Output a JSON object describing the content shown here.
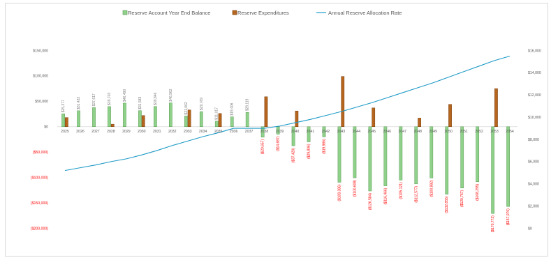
{
  "chart_data": {
    "type": "bar",
    "categories": [
      "2025",
      "2026",
      "2027",
      "2028",
      "2029",
      "2030",
      "2031",
      "2032",
      "2033",
      "2034",
      "2035",
      "2036",
      "2037",
      "2038",
      "2039",
      "2040",
      "2041",
      "2042",
      "2043",
      "2044",
      "2045",
      "2046",
      "2047",
      "2048",
      "2049",
      "2050",
      "2051",
      "2052",
      "2053",
      "2054"
    ],
    "series": [
      {
        "name": "Reserve Account Year End Balance",
        "type": "bar",
        "axis": "left",
        "color": "#8fd18a",
        "border": "#5a9a52",
        "values": [
          25377,
          31432,
          37617,
          39703,
          46490,
          31583,
          39846,
          46962,
          21062,
          29769,
          11017,
          19406,
          28119,
          -20657,
          -14687,
          -37420,
          -29806,
          -19986,
          -109386,
          -100608,
          -126584,
          -116466,
          -105121,
          -112577,
          -100992,
          -132855,
          -120767,
          -108295,
          -170773,
          -157070
        ],
        "labels": [
          "$25,377",
          "$31,432",
          "$37,617",
          "$39,703",
          "$46,490",
          "$31,583",
          "$39,846",
          "$46,962",
          "$21,062",
          "$29,769",
          "$11,017",
          "$19,406",
          "$28,119",
          "($20,657)",
          "($14,687)",
          "($37,420)",
          "($29,806)",
          "($19,986)",
          "($109,386)",
          "($100,608)",
          "($126,584)",
          "($116,466)",
          "($105,121)",
          "($112,577)",
          "($100,992)",
          "($132,855)",
          "($120,767)",
          "($108,295)",
          "($170,773)",
          "($157,070)"
        ]
      },
      {
        "name": "Reserve Expenditures",
        "type": "bar",
        "axis": "left",
        "color": "#b5651d",
        "border": "#7a3f0f",
        "values": [
          18000,
          0,
          0,
          5000,
          0,
          22000,
          0,
          0,
          33000,
          0,
          26000,
          0,
          0,
          59000,
          0,
          31000,
          0,
          0,
          99000,
          0,
          37000,
          0,
          0,
          17000,
          0,
          44000,
          0,
          0,
          75000,
          0
        ]
      },
      {
        "name": "Annual Reserve Allocation Rate",
        "type": "line",
        "axis": "right",
        "color": "#1f9bc7",
        "values": [
          5200,
          5450,
          5700,
          6000,
          6250,
          6600,
          7000,
          7450,
          7850,
          8250,
          8600,
          9000,
          9000,
          9000,
          9200,
          9500,
          9800,
          10150,
          10500,
          10900,
          11300,
          11750,
          12200,
          12650,
          13100,
          13600,
          14100,
          14600,
          15100,
          15500
        ]
      }
    ],
    "left_axis": {
      "min": -200000,
      "max": 150000,
      "step": 50000,
      "tick_labels": [
        "$150,000",
        "$100,000",
        "$50,000",
        "$0",
        "($50,000)",
        "($100,000)",
        "($150,000)",
        "($200,000)"
      ]
    },
    "right_axis": {
      "min": 0,
      "max": 16000,
      "step": 2000,
      "tick_labels": [
        "$16,000",
        "$14,000",
        "$12,000",
        "$10,000",
        "$8,000",
        "$6,000",
        "$4,000",
        "$2,000",
        "$0"
      ]
    },
    "legend_position": "top-center",
    "grid": false,
    "title": "",
    "xlabel": "",
    "ylabel": ""
  }
}
